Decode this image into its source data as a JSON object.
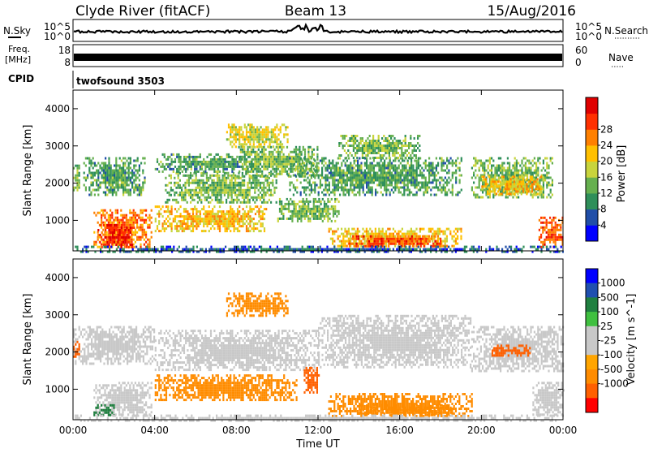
{
  "header": {
    "station": "Clyde River (fitACF)",
    "beam": "Beam 13",
    "date": "15/Aug/2016"
  },
  "summary_panels": {
    "nsky": {
      "left_label": "N.Sky",
      "right_label": "N.Search",
      "tick_top": "10^5",
      "tick_bottom": "10^0",
      "right_tick_top": "10^5",
      "right_tick_bottom": "10^0"
    },
    "freq": {
      "left_label_line1": "Freq.",
      "left_label_line2": "[MHz]",
      "right_label": "Nave",
      "left_tick_top": "18",
      "left_tick_bottom": "8",
      "right_tick_top": "60",
      "right_tick_bottom": "0"
    },
    "cpid": {
      "left_label": "CPID",
      "text": "twofsound 3503"
    }
  },
  "colors": {
    "power": [
      "#0000ff",
      "#204ea8",
      "#2f8f5a",
      "#66b04f",
      "#c8d43c",
      "#ffc000",
      "#ff8000",
      "#ff3000",
      "#e00000"
    ],
    "velocity": [
      "#ff0000",
      "#ff6000",
      "#ff8c00",
      "#ffa500",
      "#c8c8c8",
      "#c8c8c8",
      "#40c040",
      "#208040",
      "#2050b0",
      "#0000ff"
    ],
    "ground_scatter": "#c8c8c8"
  },
  "chart_data": [
    {
      "type": "heatmap",
      "name": "power",
      "ylabel": "Slant Range [km]",
      "ylim": [
        180,
        4500
      ],
      "xlim": [
        0,
        24
      ],
      "yticks": [
        1000,
        2000,
        3000,
        4000
      ],
      "xticks": [
        0,
        4,
        8,
        12,
        16,
        20,
        24
      ],
      "colorbar": {
        "label": "Power [dB]",
        "ticks": [
          "4",
          "8",
          "12",
          "16",
          "20",
          "24",
          "28"
        ],
        "range": [
          0,
          30
        ]
      },
      "regions": [
        {
          "t0": 0.0,
          "t1": 0.3,
          "r0": 1800,
          "r1": 2500,
          "value": 12
        },
        {
          "t0": 0.5,
          "t1": 3.5,
          "r0": 1700,
          "r1": 2700,
          "value": 10
        },
        {
          "t0": 1.0,
          "t1": 3.8,
          "r0": 300,
          "r1": 1300,
          "value": 22
        },
        {
          "t0": 1.2,
          "t1": 3.0,
          "r0": 300,
          "r1": 900,
          "value": 26
        },
        {
          "t0": 4.0,
          "t1": 9.5,
          "r0": 700,
          "r1": 1400,
          "value": 18
        },
        {
          "t0": 4.5,
          "t1": 10.0,
          "r0": 1500,
          "r1": 2300,
          "value": 12
        },
        {
          "t0": 4.0,
          "t1": 9.0,
          "r0": 2300,
          "r1": 2800,
          "value": 10
        },
        {
          "t0": 7.5,
          "t1": 10.5,
          "r0": 3000,
          "r1": 3600,
          "value": 16
        },
        {
          "t0": 8.0,
          "t1": 12.0,
          "r0": 2200,
          "r1": 3000,
          "value": 12
        },
        {
          "t0": 10.0,
          "t1": 13.0,
          "r0": 1000,
          "r1": 1600,
          "value": 12
        },
        {
          "t0": 10.5,
          "t1": 19.0,
          "r0": 1700,
          "r1": 2700,
          "value": 10
        },
        {
          "t0": 12.5,
          "t1": 19.0,
          "r0": 300,
          "r1": 800,
          "value": 18
        },
        {
          "t0": 13.5,
          "t1": 18.0,
          "r0": 300,
          "r1": 600,
          "value": 24
        },
        {
          "t0": 13.0,
          "t1": 17.0,
          "r0": 2700,
          "r1": 3300,
          "value": 12
        },
        {
          "t0": 19.5,
          "t1": 23.5,
          "r0": 1600,
          "r1": 2700,
          "value": 12
        },
        {
          "t0": 20.0,
          "t1": 23.0,
          "r0": 1700,
          "r1": 2200,
          "value": 18
        },
        {
          "t0": 22.8,
          "t1": 24.0,
          "r0": 300,
          "r1": 1100,
          "value": 24
        },
        {
          "t0": 0.0,
          "t1": 24.0,
          "r0": 180,
          "r1": 320,
          "value": 6
        }
      ]
    },
    {
      "type": "heatmap",
      "name": "velocity",
      "ylabel": "Slant Range [km]",
      "xlabel": "Time UT",
      "ylim": [
        180,
        4500
      ],
      "xlim": [
        0,
        24
      ],
      "yticks": [
        1000,
        2000,
        3000,
        4000
      ],
      "xticks": [
        0,
        4,
        8,
        12,
        16,
        20,
        24
      ],
      "xtick_labels": [
        "00:00",
        "04:00",
        "08:00",
        "12:00",
        "16:00",
        "20:00",
        "00:00"
      ],
      "colorbar": {
        "label": "Velocity [m s^-1]",
        "ticks": [
          "-1000",
          "-500",
          "-100",
          "-25",
          "25",
          "100",
          "500",
          "1000"
        ]
      },
      "regions": [
        {
          "t0": 0.0,
          "t1": 4.0,
          "r0": 1700,
          "r1": 2700,
          "value": 0,
          "ground": true
        },
        {
          "t0": 0.0,
          "t1": 0.3,
          "r0": 1900,
          "r1": 2300,
          "value": -500
        },
        {
          "t0": 1.0,
          "t1": 3.8,
          "r0": 300,
          "r1": 1200,
          "value": 0,
          "ground": true
        },
        {
          "t0": 1.0,
          "t1": 2.0,
          "r0": 300,
          "r1": 600,
          "value": 100
        },
        {
          "t0": 4.0,
          "t1": 11.0,
          "r0": 700,
          "r1": 1400,
          "value": -100
        },
        {
          "t0": 4.0,
          "t1": 12.0,
          "r0": 1500,
          "r1": 2600,
          "value": 0,
          "ground": true
        },
        {
          "t0": 7.5,
          "t1": 10.5,
          "r0": 3000,
          "r1": 3600,
          "value": -100
        },
        {
          "t0": 11.3,
          "t1": 12.0,
          "r0": 900,
          "r1": 1600,
          "value": -500
        },
        {
          "t0": 12.0,
          "t1": 19.5,
          "r0": 1600,
          "r1": 3000,
          "value": 0,
          "ground": true
        },
        {
          "t0": 12.5,
          "t1": 19.5,
          "r0": 300,
          "r1": 900,
          "value": -100
        },
        {
          "t0": 14.0,
          "t1": 18.5,
          "r0": 300,
          "r1": 600,
          "value": -100
        },
        {
          "t0": 19.5,
          "t1": 24.0,
          "r0": 1500,
          "r1": 2700,
          "value": 0,
          "ground": true
        },
        {
          "t0": 20.5,
          "t1": 22.5,
          "r0": 1900,
          "r1": 2200,
          "value": -500
        },
        {
          "t0": 22.5,
          "t1": 24.0,
          "r0": 300,
          "r1": 1200,
          "value": 0,
          "ground": true
        },
        {
          "t0": 0.0,
          "t1": 24.0,
          "r0": 180,
          "r1": 320,
          "value": 0,
          "ground": true
        }
      ]
    }
  ]
}
